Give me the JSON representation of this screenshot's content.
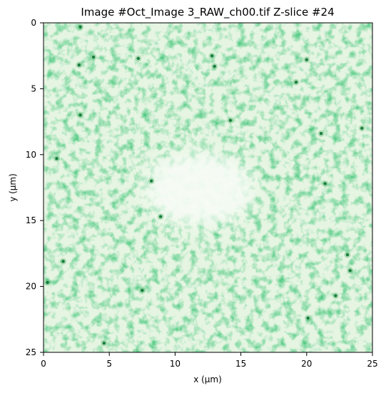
{
  "chart_data": {
    "type": "heatmap",
    "title": "Image #Oct_Image 3_RAW_ch00.tif Z-slice #24",
    "xlabel": "x (μm)",
    "ylabel": "y (μm)",
    "xlim": [
      0,
      25
    ],
    "ylim": [
      25,
      0
    ],
    "xticks": [
      0,
      5,
      10,
      15,
      20,
      25
    ],
    "yticks": [
      0,
      5,
      10,
      15,
      20,
      25
    ],
    "colormap": "Greens",
    "grid": false,
    "colorbar": false,
    "dark_region": {
      "center": [
        11.8,
        12.6
      ],
      "radii": [
        4.2,
        2.8
      ]
    },
    "bright_spots": [
      {
        "x": 2.8,
        "y": 0.3
      },
      {
        "x": 3.8,
        "y": 2.6
      },
      {
        "x": 2.7,
        "y": 3.2
      },
      {
        "x": 7.2,
        "y": 2.7
      },
      {
        "x": 12.8,
        "y": 2.5
      },
      {
        "x": 13.0,
        "y": 3.3
      },
      {
        "x": 20.0,
        "y": 2.8
      },
      {
        "x": 19.2,
        "y": 4.5
      },
      {
        "x": 2.8,
        "y": 7.0
      },
      {
        "x": 14.2,
        "y": 7.4
      },
      {
        "x": 21.1,
        "y": 8.4
      },
      {
        "x": 24.2,
        "y": 8.0
      },
      {
        "x": 1.0,
        "y": 10.3
      },
      {
        "x": 8.2,
        "y": 12.0
      },
      {
        "x": 21.4,
        "y": 12.2
      },
      {
        "x": 8.9,
        "y": 14.7
      },
      {
        "x": 1.5,
        "y": 18.1
      },
      {
        "x": 23.1,
        "y": 17.6
      },
      {
        "x": 23.3,
        "y": 18.8
      },
      {
        "x": 0.3,
        "y": 19.7
      },
      {
        "x": 7.5,
        "y": 20.3
      },
      {
        "x": 22.2,
        "y": 20.7
      },
      {
        "x": 20.1,
        "y": 22.4
      },
      {
        "x": 4.6,
        "y": 24.3
      }
    ]
  }
}
